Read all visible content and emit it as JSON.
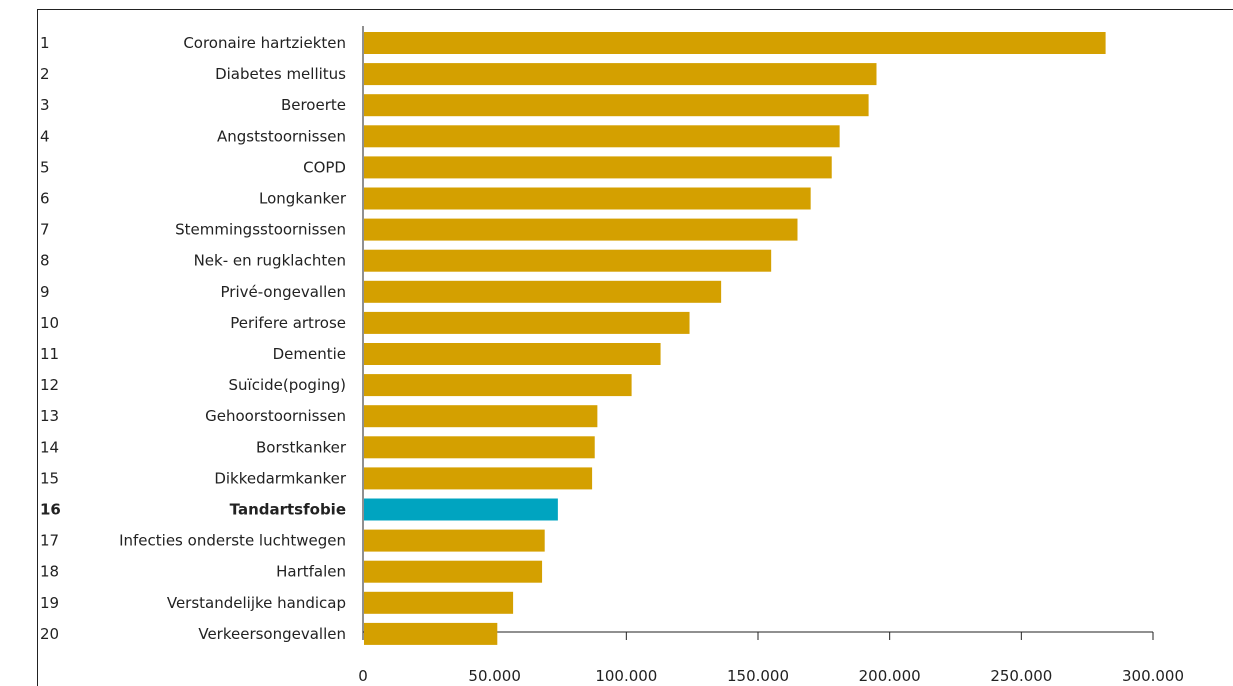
{
  "chart_data": {
    "type": "bar",
    "orientation": "horizontal",
    "categories": [
      "Coronaire hartziekten",
      "Diabetes mellitus",
      "Beroerte",
      "Angststoornissen",
      "COPD",
      "Longkanker",
      "Stemmingsstoornissen",
      "Nek- en rugklachten",
      "Privé-ongevallen",
      "Perifere artrose",
      "Dementie",
      "Suïcide(poging)",
      "Gehoorstoornissen",
      "Borstkanker",
      "Dikkedarmkanker",
      "Tandartsfobie",
      "Infecties onderste luchtwegen",
      "Hartfalen",
      "Verstandelijke handicap",
      "Verkeersongevallen"
    ],
    "ranks": [
      "1",
      "2",
      "3",
      "4",
      "5",
      "6",
      "7",
      "8",
      "9",
      "10",
      "11",
      "12",
      "13",
      "14",
      "15",
      "16",
      "17",
      "18",
      "19",
      "20"
    ],
    "values": [
      282000,
      195000,
      192000,
      181000,
      178000,
      170000,
      165000,
      155000,
      136000,
      124000,
      113000,
      102000,
      89000,
      88000,
      87000,
      74000,
      69000,
      68000,
      57000,
      51000
    ],
    "highlight_index": 15,
    "xlim": [
      0,
      300000
    ],
    "xticks": [
      0,
      50000,
      100000,
      150000,
      200000,
      250000,
      300000
    ],
    "xtick_labels": [
      "0",
      "50.000",
      "100.000",
      "150.000",
      "200.000",
      "250.000",
      "300.000"
    ],
    "title": "",
    "xlabel": "",
    "ylabel": "",
    "grid": false,
    "colors": {
      "bar": "#D4A000",
      "highlight": "#00A4C0",
      "axis": "#222222"
    }
  }
}
